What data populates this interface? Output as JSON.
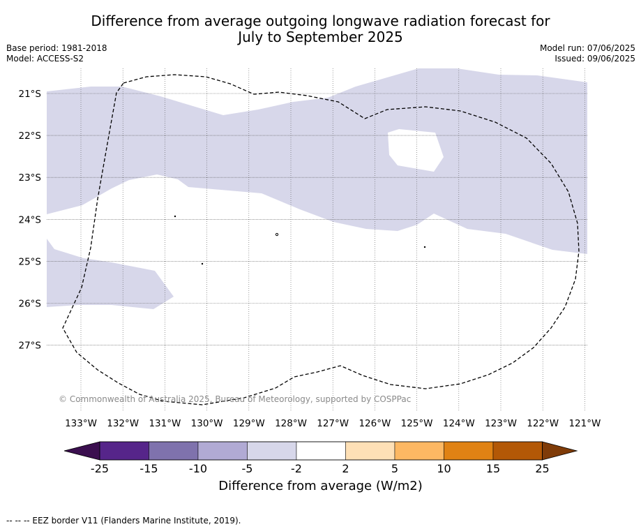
{
  "title_line1": "Difference from average outgoing longwave radiation forecast for",
  "title_line2": "July to September 2025",
  "base_period": "Base period: 1981-2018",
  "model": "Model: ACCESS-S2",
  "model_run": "Model run: 07/06/2025",
  "issued": "Issued: 09/06/2025",
  "copyright": "© Commonwealth of Australia 2025, Bureau of Meteorology, supported by COSPPac",
  "lat_labels": [
    "21°S",
    "22°S",
    "23°S",
    "24°S",
    "25°S",
    "26°S",
    "27°S"
  ],
  "lon_labels": [
    "133°W",
    "132°W",
    "131°W",
    "130°W",
    "129°W",
    "128°W",
    "127°W",
    "126°W",
    "125°W",
    "124°W",
    "123°W",
    "122°W",
    "121°W"
  ],
  "colorbar": {
    "title": "Difference from average (W/m2)",
    "labels": [
      "-25",
      "-15",
      "-10",
      "-5",
      "-2",
      "2",
      "5",
      "10",
      "15",
      "25"
    ],
    "colors": [
      "#3b0f4f",
      "#56258a",
      "#7f72ad",
      "#b1aad4",
      "#d7d7ea",
      "#ffffff",
      "#fee0b6",
      "#fdb863",
      "#e08214",
      "#b35806",
      "#7f3b08"
    ]
  },
  "legend_note": "-- -- -- EEZ border V11 (Flanders Marine Institute, 2019).",
  "colors": {
    "anomaly_fill": "#d7d7ea",
    "gridline": "#555555"
  }
}
